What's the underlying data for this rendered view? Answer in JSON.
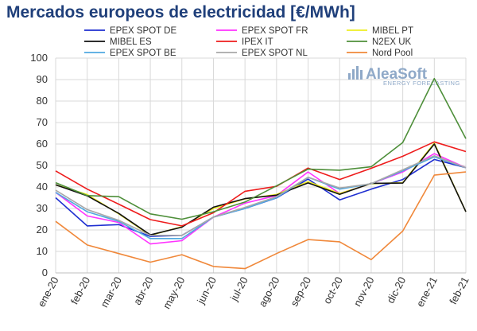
{
  "chart_data": {
    "type": "line",
    "title": "Mercados europeos de electricidad [€/MWh]",
    "xlabel": "",
    "ylabel": "",
    "ylim": [
      0,
      100
    ],
    "yticks": [
      0,
      10,
      20,
      30,
      40,
      50,
      60,
      70,
      80,
      90,
      100
    ],
    "grid": true,
    "legend_position": "top",
    "categories": [
      "ene-20",
      "feb-20",
      "mar-20",
      "abr-20",
      "may-20",
      "jun-20",
      "jul-20",
      "ago-20",
      "sep-20",
      "oct-20",
      "nov-20",
      "dic-20",
      "ene-21",
      "feb-21"
    ],
    "series": [
      {
        "name": "EPEX SPOT DE",
        "color": "#1f2fd1",
        "values": [
          35,
          21.9,
          22.5,
          17,
          17.5,
          26,
          30,
          34.9,
          43.7,
          34,
          39,
          43.5,
          52.8,
          49
        ]
      },
      {
        "name": "EPEX SPOT FR",
        "color": "#ff33ff",
        "values": [
          37.5,
          26.5,
          23.5,
          13.5,
          15,
          26,
          32.5,
          36,
          47,
          37,
          41.5,
          47,
          55.5,
          49
        ]
      },
      {
        "name": "MIBEL PT",
        "color": "#eeee22",
        "values": [
          41,
          36.5,
          27.5,
          17.5,
          21.5,
          30,
          34.5,
          36.5,
          42.5,
          37,
          41.5,
          42,
          60.5,
          28.5
        ]
      },
      {
        "name": "MIBEL ES",
        "color": "#111111",
        "values": [
          41,
          35.9,
          27.7,
          17.7,
          21.3,
          30.6,
          34.6,
          36.2,
          41.9,
          36.6,
          41.7,
          41.8,
          60,
          28.5
        ]
      },
      {
        "name": "IPEX IT",
        "color": "#ee1c1c",
        "values": [
          47.5,
          39,
          32,
          24.8,
          21.9,
          28,
          38,
          40.3,
          48.8,
          43.5,
          48.7,
          54.3,
          61,
          56.5
        ]
      },
      {
        "name": "N2EX UK",
        "color": "#4e8f3a",
        "values": [
          42,
          36,
          35.5,
          27.5,
          25,
          28.5,
          33,
          40.5,
          48.3,
          47.8,
          49.4,
          60.7,
          90.5,
          62.5
        ]
      },
      {
        "name": "EPEX SPOT BE",
        "color": "#4fa8e0",
        "values": [
          37.5,
          28.5,
          24,
          16,
          16,
          26,
          30,
          35,
          44.5,
          39,
          41.5,
          47.5,
          54,
          49
        ]
      },
      {
        "name": "EPEX SPOT NL",
        "color": "#a8a8a8",
        "values": [
          38.5,
          29.5,
          24.5,
          17.5,
          17.5,
          26,
          30.5,
          35.5,
          44.5,
          39.5,
          41.5,
          48,
          54.5,
          49
        ]
      },
      {
        "name": "Nord Pool",
        "color": "#f0883a",
        "values": [
          24,
          13,
          9,
          5,
          8.5,
          3,
          2,
          9,
          15.5,
          14.5,
          6.2,
          19.5,
          45.5,
          47
        ]
      }
    ]
  },
  "logo": {
    "name": "AleaSoft",
    "tagline": "ENERGY FORECASTING"
  }
}
